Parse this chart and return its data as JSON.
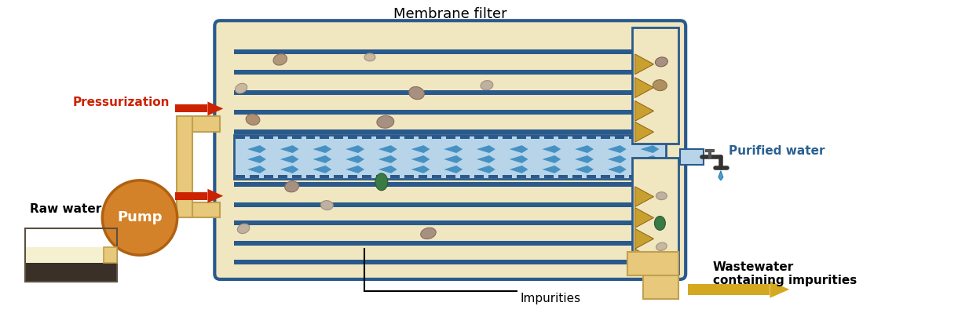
{
  "title": "Membrane filter",
  "bg_color": "#ffffff",
  "filter_bg": "#f0e6c0",
  "filter_border": "#2a5a8c",
  "membrane_blue": "#b8d4e8",
  "membrane_dark": "#2a5a8c",
  "pipe_color": "#e8c87a",
  "pump_color": "#d4822a",
  "arrow_red": "#cc2200",
  "arrow_gold": "#d4a820",
  "text_black": "#000000",
  "text_red": "#cc2200",
  "text_blue": "#2a6090",
  "raw_water_label": "Raw water",
  "pump_label": "Pump",
  "pressurization_label": "Pressurization",
  "purified_label": "Purified water",
  "impurities_label": "Impurities",
  "wastewater_label": "Wastewater\ncontaining impurities",
  "filter_label": "Membrane filter"
}
